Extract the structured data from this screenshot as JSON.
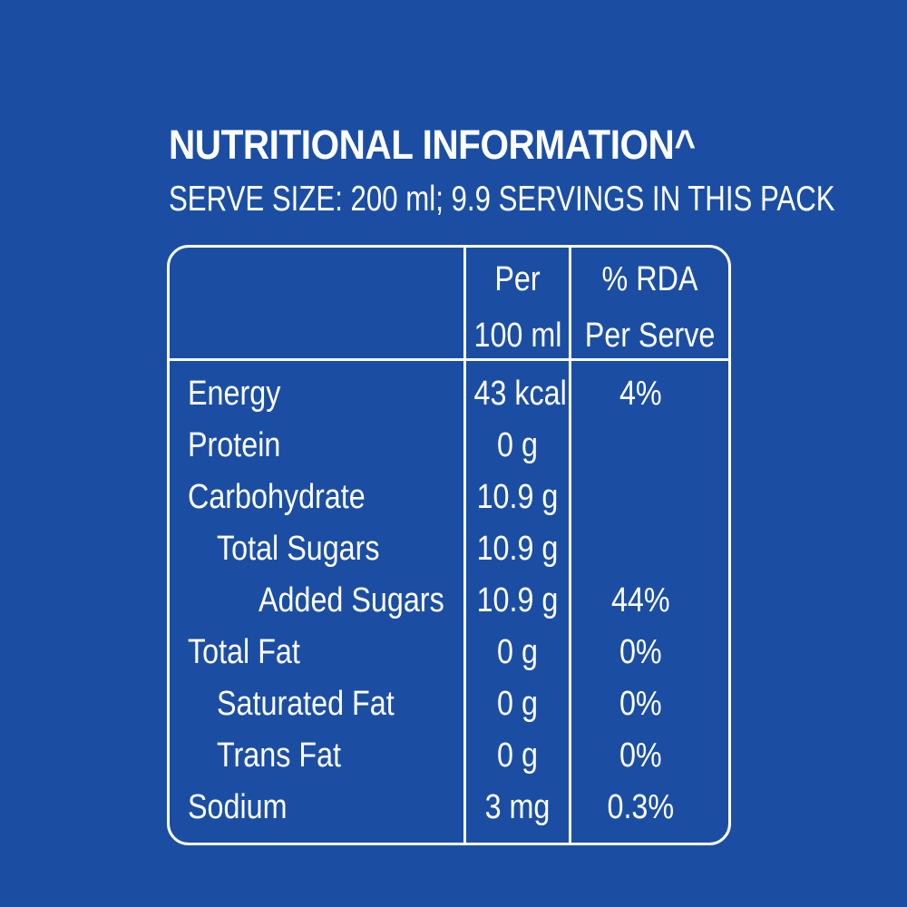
{
  "label": {
    "title": "NUTRITIONAL INFORMATION^",
    "subtitle": "SERVE SIZE: 200 ml; 9.9 SERVINGS IN THIS PACK",
    "header": {
      "per_line1": "Per",
      "per_line2": "100 ml",
      "rda_line1": "% RDA",
      "rda_line2": "Per Serve"
    },
    "rows": [
      {
        "name": "Energy",
        "value": "43 kcal",
        "rda": "4%",
        "indent": 0
      },
      {
        "name": "Protein",
        "value": "0 g",
        "rda": "",
        "indent": 0
      },
      {
        "name": "Carbohydrate",
        "value": "10.9 g",
        "rda": "",
        "indent": 0
      },
      {
        "name": "Total Sugars",
        "value": "10.9 g",
        "rda": "",
        "indent": 1
      },
      {
        "name": "Added Sugars",
        "value": "10.9 g",
        "rda": "44%",
        "indent": 2
      },
      {
        "name": "Total Fat",
        "value": "0 g",
        "rda": "0%",
        "indent": 0
      },
      {
        "name": "Saturated Fat",
        "value": "0 g",
        "rda": "0%",
        "indent": 1
      },
      {
        "name": "Trans Fat",
        "value": "0 g",
        "rda": "0%",
        "indent": 1
      },
      {
        "name": "Sodium",
        "value": "3 mg",
        "rda": "0.3%",
        "indent": 0
      }
    ]
  },
  "colors": {
    "background": "#1b4ea3",
    "foreground": "#ffffff"
  }
}
